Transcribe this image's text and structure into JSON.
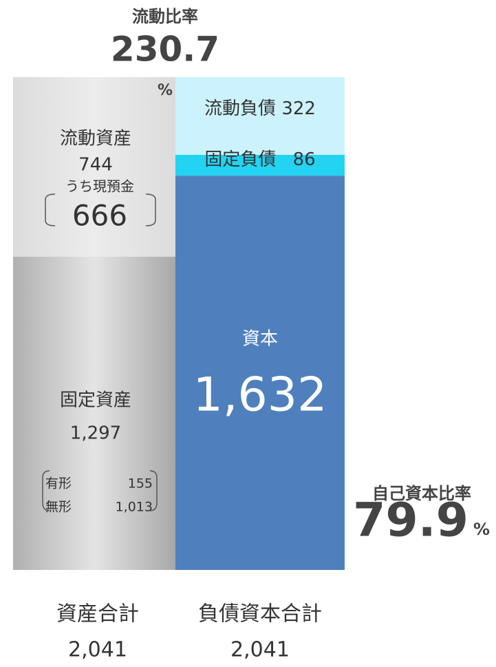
{
  "current_ratio": {
    "label": "流動比率",
    "value": 230.7,
    "unit": "%"
  },
  "equity_ratio": {
    "label": "自己資本比率",
    "value": 79.9,
    "unit": "%"
  },
  "assets": {
    "current": {
      "label": "流動資産",
      "value": 744,
      "cash_label": "うち現預金",
      "cash": 666
    },
    "fixed": {
      "label": "固定資産",
      "value": {
        "value": 1297,
        "label": "1,297"
      },
      "tangible_label": "有形",
      "tangible": 155,
      "intangible_label": "無形",
      "intangible": {
        "value": 1013,
        "label": "1,013"
      }
    },
    "total_label": "資産合計",
    "total": {
      "value": 2041,
      "label": "2,041"
    }
  },
  "liabilities": {
    "current": {
      "label": "流動負債",
      "value": 322
    },
    "fixed": {
      "label": "固定負債",
      "value": 86
    },
    "equity": {
      "label": "資本",
      "value": {
        "value": 1632,
        "label": "1,632"
      }
    },
    "total_label": "負債資本合計",
    "total": {
      "value": 2041,
      "label": "2,041"
    }
  }
}
